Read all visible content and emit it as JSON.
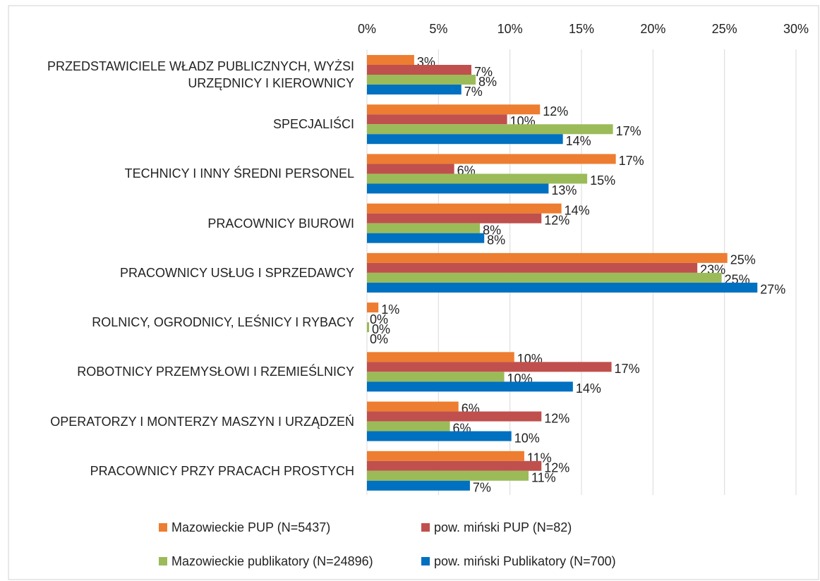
{
  "chart_data": {
    "type": "bar",
    "orientation": "horizontal",
    "categories": [
      "PRZEDSTAWICIELE WŁADZ PUBLICZNYCH, WYŻSI URZĘDNICY I KIEROWNICY",
      "SPECJALIŚCI",
      "TECHNICY I INNY ŚREDNI PERSONEL",
      "PRACOWNICY BIUROWI",
      "PRACOWNICY USŁUG I SPRZEDAWCY",
      "ROLNICY, OGRODNICY, LEŚNICY I RYBACY",
      "ROBOTNICY PRZEMYSŁOWI I RZEMIEŚLNICY",
      "OPERATORZY I MONTERZY MASZYN I URZĄDZEŃ",
      "PRACOWNICY PRZY PRACACH PROSTYCH"
    ],
    "series": [
      {
        "name": "Mazowieckie PUP (N=5437)",
        "color": "#ed7d31",
        "values": [
          3.3,
          12.1,
          17.4,
          13.6,
          25.2,
          0.8,
          10.3,
          6.4,
          11.0
        ],
        "value_labels": [
          "3%",
          "12%",
          "17%",
          "14%",
          "25%",
          "1%",
          "10%",
          "6%",
          "11%"
        ]
      },
      {
        "name": "pow. miński PUP (N=82)",
        "color": "#c0504d",
        "values": [
          7.3,
          9.8,
          6.1,
          12.2,
          23.1,
          0,
          17.1,
          12.2,
          12.2
        ],
        "value_labels": [
          "7%",
          "10%",
          "6%",
          "12%",
          "23%",
          "0%",
          "17%",
          "12%",
          "12%"
        ]
      },
      {
        "name": "Mazowieckie publikatory (N=24896)",
        "color": "#9bbb59",
        "values": [
          7.6,
          17.2,
          15.4,
          7.9,
          24.8,
          0.15,
          9.6,
          5.8,
          11.3
        ],
        "value_labels": [
          "8%",
          "17%",
          "15%",
          "8%",
          "25%",
          "0%",
          "10%",
          "6%",
          "11%"
        ]
      },
      {
        "name": "pow. miński Publikatory (N=700)",
        "color": "#0070c0",
        "values": [
          6.6,
          13.7,
          12.7,
          8.2,
          27.3,
          0,
          14.4,
          10.1,
          7.2
        ],
        "value_labels": [
          "7%",
          "14%",
          "13%",
          "8%",
          "27%",
          "0%",
          "14%",
          "10%",
          "7%"
        ]
      }
    ],
    "xlim": [
      0,
      30
    ],
    "xticks": [
      {
        "value": 0,
        "label": "0%"
      },
      {
        "value": 5,
        "label": "5%"
      },
      {
        "value": 10,
        "label": "10%"
      },
      {
        "value": 15,
        "label": "15%"
      },
      {
        "value": 20,
        "label": "20%"
      },
      {
        "value": 25,
        "label": "25%"
      },
      {
        "value": 30,
        "label": "30%"
      }
    ],
    "grid": true,
    "legend": "bottom"
  }
}
